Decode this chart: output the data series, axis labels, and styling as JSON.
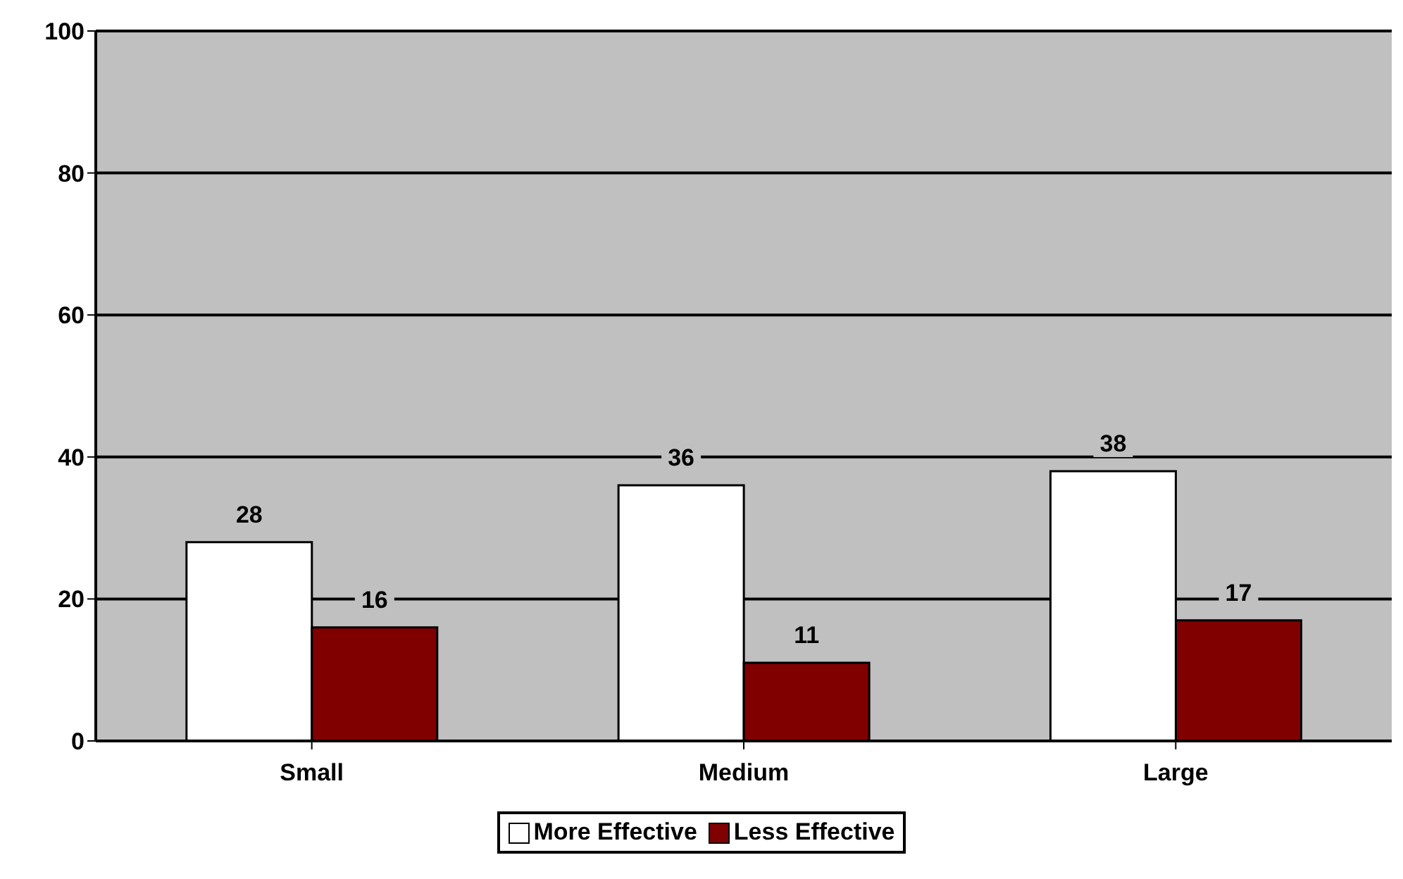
{
  "chart_data": {
    "type": "bar",
    "categories": [
      "Small",
      "Medium",
      "Large"
    ],
    "series": [
      {
        "name": "More Effective",
        "color": "#ffffff",
        "values": [
          28,
          36,
          38
        ]
      },
      {
        "name": "Less Effective",
        "color": "#800000",
        "values": [
          16,
          11,
          17
        ]
      }
    ],
    "ylim": [
      0,
      100
    ],
    "yticks": [
      0,
      20,
      40,
      60,
      80,
      100
    ],
    "grid": "y",
    "legend": "bottom",
    "data_labels": true
  }
}
